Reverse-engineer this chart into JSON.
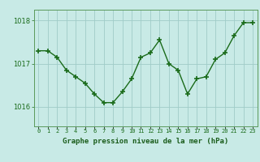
{
  "x": [
    0,
    1,
    2,
    3,
    4,
    5,
    6,
    7,
    8,
    9,
    10,
    11,
    12,
    13,
    14,
    15,
    16,
    17,
    18,
    19,
    20,
    21,
    22,
    23
  ],
  "y": [
    1017.3,
    1017.3,
    1017.15,
    1016.85,
    1016.7,
    1016.55,
    1016.3,
    1016.1,
    1016.1,
    1016.35,
    1016.65,
    1017.15,
    1017.25,
    1017.55,
    1017.0,
    1016.85,
    1016.3,
    1016.65,
    1016.7,
    1017.1,
    1017.25,
    1017.65,
    1017.95,
    1017.95
  ],
  "line_color": "#1a6b1a",
  "marker_color": "#1a6b1a",
  "bg_color": "#c8eae6",
  "grid_color": "#a0ccc8",
  "xlabel": "Graphe pression niveau de la mer (hPa)",
  "xlabel_color": "#1a5c1a",
  "tick_color": "#1a6b1a",
  "ylim": [
    1015.55,
    1018.25
  ],
  "yticks": [
    1016,
    1017,
    1018
  ],
  "xlim": [
    -0.5,
    23.5
  ],
  "border_color": "#5a9a5a"
}
